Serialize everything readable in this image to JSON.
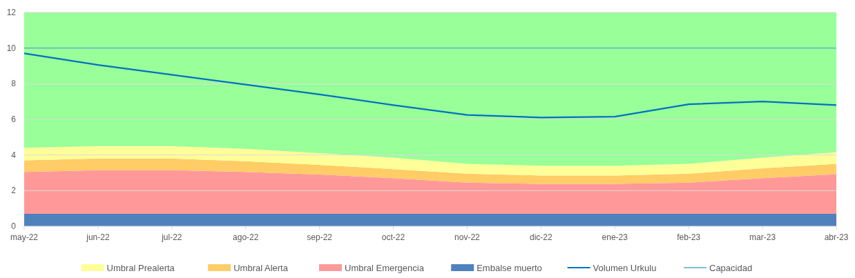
{
  "chart_data": {
    "type": "area",
    "stacked": true,
    "categories": [
      "may-22",
      "jun-22",
      "jul-22",
      "ago-22",
      "sep-22",
      "oct-22",
      "nov-22",
      "dic-22",
      "ene-23",
      "feb-23",
      "mar-23",
      "abr-23"
    ],
    "ylim": [
      0,
      12
    ],
    "yticks": [
      0,
      2,
      4,
      6,
      8,
      10,
      12
    ],
    "grid": "y",
    "legend": "bottom",
    "series": [
      {
        "name": "Embalse muerto",
        "color": "#4f81bd",
        "values": [
          0.7,
          0.7,
          0.7,
          0.7,
          0.7,
          0.7,
          0.7,
          0.7,
          0.7,
          0.7,
          0.7,
          0.7
        ]
      },
      {
        "name": "Umbral Emergencia",
        "color": "#ff9999",
        "values": [
          2.35,
          2.45,
          2.45,
          2.35,
          2.2,
          2.0,
          1.75,
          1.68,
          1.68,
          1.75,
          2.0,
          2.22
        ]
      },
      {
        "name": "Umbral Alerta",
        "color": "#ffcc66",
        "values": [
          0.65,
          0.65,
          0.65,
          0.6,
          0.55,
          0.5,
          0.5,
          0.47,
          0.47,
          0.5,
          0.55,
          0.58
        ]
      },
      {
        "name": "Umbral Prealerta",
        "color": "#ffff99",
        "values": [
          0.7,
          0.7,
          0.7,
          0.7,
          0.65,
          0.65,
          0.55,
          0.55,
          0.55,
          0.55,
          0.6,
          0.65
        ]
      },
      {
        "color": "#99ff99",
        "values": [
          7.6,
          7.5,
          7.5,
          7.65,
          7.9,
          8.15,
          8.5,
          8.6,
          8.6,
          8.5,
          8.15,
          7.85
        ]
      },
      {
        "name": "Volumen Urkulu",
        "type": "line",
        "color": "#0070c0",
        "values": [
          9.7,
          9.05,
          8.5,
          7.95,
          7.4,
          6.8,
          6.25,
          6.1,
          6.15,
          6.85,
          7.0,
          6.8
        ]
      },
      {
        "name": "Capacidad",
        "type": "line",
        "color": "#4bacc6",
        "values": [
          10,
          10,
          10,
          10,
          10,
          10,
          10,
          10,
          10,
          10,
          10,
          10
        ]
      }
    ]
  }
}
